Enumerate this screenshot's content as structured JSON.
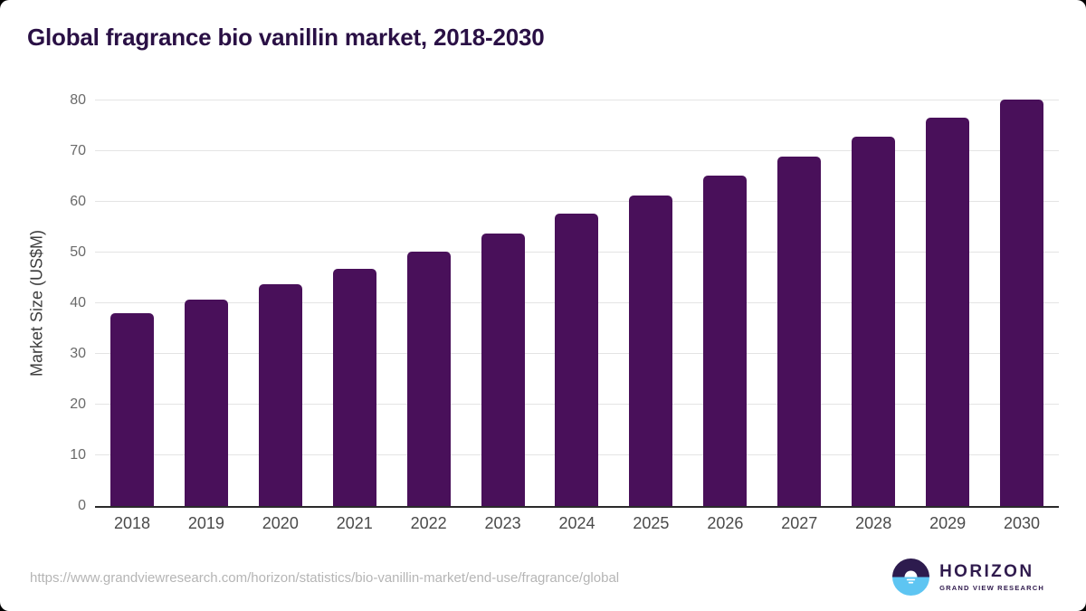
{
  "chart_data": {
    "type": "bar",
    "title": "Global fragrance bio vanillin market, 2018-2030",
    "categories": [
      "2018",
      "2019",
      "2020",
      "2021",
      "2022",
      "2023",
      "2024",
      "2025",
      "2026",
      "2027",
      "2028",
      "2029",
      "2030"
    ],
    "values": [
      38.0,
      40.8,
      43.7,
      46.8,
      50.2,
      53.7,
      57.7,
      61.3,
      65.1,
      69.0,
      72.9,
      76.6,
      80.2
    ],
    "xlabel": "",
    "ylabel": "Market Size (US$M)",
    "ylim": [
      0,
      80
    ],
    "ytick_step": 10,
    "yticks": [
      "0",
      "10",
      "20",
      "30",
      "40",
      "50",
      "60",
      "70",
      "80"
    ],
    "grid": true,
    "legend": "none",
    "bar_color": "#49105a",
    "title_color": "#2a1045"
  },
  "footer": {
    "source_url": "https://www.grandviewresearch.com/horizon/statistics/bio-vanillin-market/end-use/fragrance/global",
    "logo": {
      "brand": "HORIZON",
      "subtitle": "GRAND VIEW RESEARCH",
      "icon": "sunrise-circle-icon",
      "icon_purple": "#2d1b4e",
      "icon_blue": "#5ec5f2"
    }
  }
}
